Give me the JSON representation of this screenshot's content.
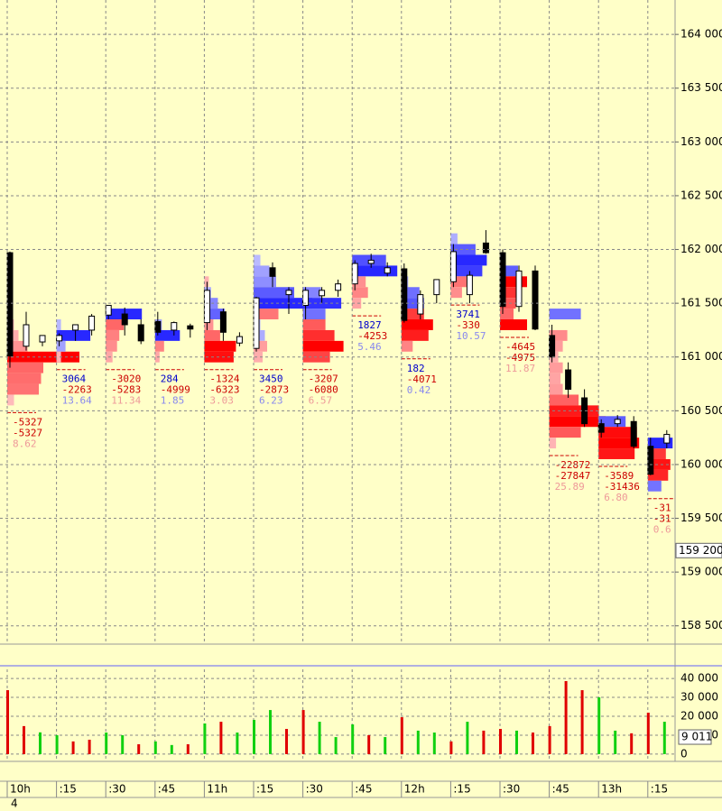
{
  "chart_data": [
    {
      "type": "footprint",
      "categories": [
        "10h",
        ":15",
        ":30",
        ":45",
        "11h",
        ":15",
        ":30",
        ":45",
        "12h",
        ":15",
        ":30",
        ":45",
        "13h",
        ":15"
      ],
      "date_label": "4",
      "ylim": [
        158330,
        164320
      ],
      "yticks": [
        {
          "value": 158500,
          "label": "158 500"
        },
        {
          "value": 159000,
          "label": "159 000"
        },
        {
          "value": 159500,
          "label": "159 500"
        },
        {
          "value": 160000,
          "label": "160 000"
        },
        {
          "value": 160500,
          "label": "160 500"
        },
        {
          "value": 161000,
          "label": "161 000"
        },
        {
          "value": 161500,
          "label": "161 500"
        },
        {
          "value": 162000,
          "label": "162 000"
        },
        {
          "value": 162500,
          "label": "162 500"
        },
        {
          "value": 163000,
          "label": "163 000"
        },
        {
          "value": 163500,
          "label": "163 500"
        },
        {
          "value": 164000,
          "label": "164 000"
        }
      ],
      "last_price": {
        "value": 159200,
        "label": "159 200"
      },
      "grid": true,
      "columns": [
        {
          "candles": [
            [
              161970,
              161980,
              160900,
              161010
            ],
            [
              161100,
              161420,
              161060,
              161300
            ],
            [
              161140,
              161200,
              161100,
              161200
            ]
          ],
          "profile": {
            "prices": [
              161300,
              161200,
              161100,
              161000,
              160900,
              160800,
              160700,
              160600
            ],
            "values": [
              -300,
              -500,
              -900,
              -3200,
              -1600,
              -1500,
              -1400,
              -300
            ]
          },
          "delta": -5327,
          "cum_delta": -5327,
          "ratio": 8.62
        },
        {
          "candles": [
            [
              161150,
              161220,
              161100,
              161200
            ],
            [
              161250,
              161300,
              161150,
              161300
            ],
            [
              161250,
              161400,
              161200,
              161380
            ]
          ],
          "profile": {
            "prices": [
              161300,
              161200,
              161100,
              161000
            ],
            "values": [
              200,
              1500,
              400,
              -200
            ]
          },
          "delta": 3064,
          "cum_delta": -2263,
          "ratio": 13.64
        },
        {
          "candles": [
            [
              161390,
              161480,
              161350,
              161480
            ],
            [
              161400,
              161460,
              161200,
              161300
            ],
            [
              161300,
              161350,
              161120,
              161150
            ]
          ],
          "profile": {
            "prices": [
              161400,
              161300,
              161200,
              161100,
              161000
            ],
            "values": [
              1600,
              -800,
              -600,
              -500,
              -300
            ]
          },
          "delta": -3020,
          "cum_delta": -5283,
          "ratio": 11.34
        },
        {
          "candles": [
            [
              161330,
              161420,
              161200,
              161230
            ],
            [
              161250,
              161330,
              161200,
              161320
            ],
            [
              161290,
              161310,
              161180,
              161260
            ]
          ],
          "profile": {
            "prices": [
              161300,
              161200,
              161100,
              161000
            ],
            "values": [
              300,
              1100,
              -400,
              -200
            ]
          },
          "delta": 284,
          "cum_delta": -4999,
          "ratio": 1.85
        },
        {
          "candles": [
            [
              161320,
              161700,
              161250,
              161620
            ],
            [
              161420,
              161450,
              161150,
              161230
            ],
            [
              161130,
              161230,
              161100,
              161190
            ]
          ],
          "profile": {
            "prices": [
              161700,
              161600,
              161500,
              161400,
              161300,
              161200,
              161100,
              161000
            ],
            "values": [
              -200,
              300,
              600,
              900,
              -400,
              -700,
              -1400,
              -1300
            ]
          },
          "delta": -1324,
          "cum_delta": -6323,
          "ratio": 3.03
        },
        {
          "candles": [
            [
              161080,
              161560,
              161050,
              161550
            ],
            [
              161830,
              161880,
              161650,
              161750
            ],
            [
              161580,
              161650,
              161400,
              161620
            ]
          ],
          "profile": {
            "prices": [
              161900,
              161800,
              161700,
              161600,
              161500,
              161400,
              161300,
              161200,
              161100,
              161000
            ],
            "values": [
              300,
              700,
              1000,
              1800,
              2600,
              -1100,
              300,
              500,
              -600,
              -400
            ]
          },
          "delta": 3450,
          "cum_delta": -2873,
          "ratio": 6.23
        },
        {
          "candles": [
            [
              161480,
              161650,
              161350,
              161620
            ],
            [
              161570,
              161650,
              161500,
              161620
            ],
            [
              161620,
              161720,
              161560,
              161680
            ]
          ],
          "profile": {
            "prices": [
              161600,
              161500,
              161400,
              161300,
              161200,
              161100,
              161000
            ],
            "values": [
              800,
              1700,
              1000,
              -1000,
              -1400,
              -1800,
              -1200
            ]
          },
          "delta": -3207,
          "cum_delta": -6080,
          "ratio": 6.57
        },
        {
          "candles": [
            [
              161680,
              161900,
              161620,
              161870
            ],
            [
              161870,
              161960,
              161830,
              161900
            ],
            [
              161780,
              161880,
              161750,
              161830
            ]
          ],
          "profile": {
            "prices": [
              161900,
              161800,
              161700,
              161600,
              161500
            ],
            "values": [
              1500,
              2000,
              -600,
              -700,
              -400
            ]
          },
          "delta": 1827,
          "cum_delta": -4253,
          "ratio": 5.46
        },
        {
          "candles": [
            [
              161820,
              161870,
              161320,
              161340
            ],
            [
              161400,
              161620,
              161350,
              161580
            ],
            [
              161580,
              161720,
              161500,
              161720
            ]
          ],
          "profile": {
            "prices": [
              161700,
              161600,
              161500,
              161400,
              161300,
              161200,
              161100
            ],
            "values": [
              300,
              800,
              1000,
              -1000,
              -1400,
              -1200,
              -500
            ]
          },
          "delta": 182,
          "cum_delta": -4071,
          "ratio": 0.42
        },
        {
          "candles": [
            [
              161700,
              162050,
              161650,
              161980
            ],
            [
              161580,
              161800,
              161500,
              161760
            ],
            [
              162060,
              162180,
              161960,
              161970
            ]
          ],
          "profile": {
            "prices": [
              162100,
              162000,
              161900,
              161800,
              161700,
              161600
            ],
            "values": [
              300,
              1100,
              1600,
              1400,
              -700,
              -500
            ]
          },
          "delta": 3741,
          "cum_delta": -330,
          "ratio": 10.57
        },
        {
          "candles": [
            [
              161970,
              162000,
              161400,
              161470
            ],
            [
              161470,
              161850,
              161420,
              161800
            ],
            [
              161800,
              161850,
              161250,
              161260
            ]
          ],
          "profile": {
            "prices": [
              161800,
              161700,
              161600,
              161500,
              161400,
              161300
            ],
            "values": [
              800,
              -1200,
              -900,
              -700,
              -600,
              -1200
            ]
          },
          "delta": -4645,
          "cum_delta": -4975,
          "ratio": 11.87
        },
        {
          "candles": [
            [
              161200,
              161300,
              160950,
              161000
            ],
            [
              160880,
              160950,
              160620,
              160700
            ],
            [
              160620,
              160700,
              160350,
              160380
            ]
          ],
          "profile": {
            "prices": [
              161400,
              161200,
              161100,
              161000,
              160900,
              160800,
              160700,
              160600,
              160500,
              160400,
              160300,
              160200
            ],
            "values": [
              1400,
              -800,
              -600,
              -400,
              -600,
              -500,
              -600,
              -1300,
              -2200,
              -2500,
              -1400,
              -300
            ]
          },
          "delta": -22872,
          "cum_delta": -27847,
          "ratio": 25.89
        },
        {
          "candles": [
            [
              160380,
              160420,
              160250,
              160300
            ],
            [
              160380,
              160460,
              160350,
              160420
            ],
            [
              160400,
              160450,
              160150,
              160170
            ]
          ],
          "profile": {
            "prices": [
              160400,
              160300,
              160200,
              160100
            ],
            "values": [
              1200,
              -1700,
              -1800,
              -1600
            ]
          },
          "delta": -3589,
          "cum_delta": -31436,
          "ratio": 6.8,
          "ratio_label": "6.80"
        },
        {
          "candles": [
            [
              160170,
              160250,
              159900,
              159910
            ],
            [
              160200,
              160320,
              160150,
              160280
            ]
          ],
          "profile": {
            "prices": [
              160200,
              160100,
              160000,
              159900,
              159800
            ],
            "values": [
              1100,
              -800,
              -1000,
              -900,
              600
            ]
          },
          "delta": -31,
          "cum_delta": -31,
          "ratio": 0.6
        }
      ]
    },
    {
      "type": "bar",
      "ylim": [
        -2900,
        44800
      ],
      "yticks": [
        0,
        {
          "value": 10000,
          "label": "10 000"
        },
        {
          "value": 20000,
          "label": "20 000"
        },
        {
          "value": 30000,
          "label": "30 000"
        },
        {
          "value": 40000,
          "label": "40 000"
        }
      ],
      "last": {
        "value": 9011,
        "label": "9 011"
      },
      "values": [
        33800,
        14800,
        11500,
        10000,
        6700,
        7600,
        11400,
        10000,
        5200,
        6700,
        4800,
        5200,
        16200,
        17100,
        11400,
        18100,
        23300,
        13300,
        23300,
        17100,
        9000,
        15700,
        10000,
        9000,
        19500,
        12400,
        11400,
        6700,
        17100,
        12400,
        13300,
        12400,
        11400,
        14800,
        38600,
        33800,
        30000,
        12400,
        11000,
        21900,
        17100
      ],
      "colors": [
        "#e00000",
        "#e00000",
        "#10d010",
        "#10d010",
        "#e00000",
        "#e00000",
        "#10d010",
        "#10d010",
        "#e00000",
        "#10d010",
        "#10d010",
        "#e00000",
        "#10d010",
        "#e00000",
        "#10d010",
        "#10d010",
        "#10d010",
        "#e00000",
        "#e00000",
        "#10d010",
        "#10d010",
        "#10d010",
        "#e00000",
        "#10d010",
        "#e00000",
        "#10d010",
        "#10d010",
        "#e00000",
        "#10d010",
        "#e00000",
        "#e00000",
        "#10d010",
        "#e00000",
        "#e00000",
        "#e00000",
        "#e00000",
        "#10d010",
        "#10d010",
        "#e00000",
        "#e00000",
        "#10d010"
      ]
    }
  ]
}
